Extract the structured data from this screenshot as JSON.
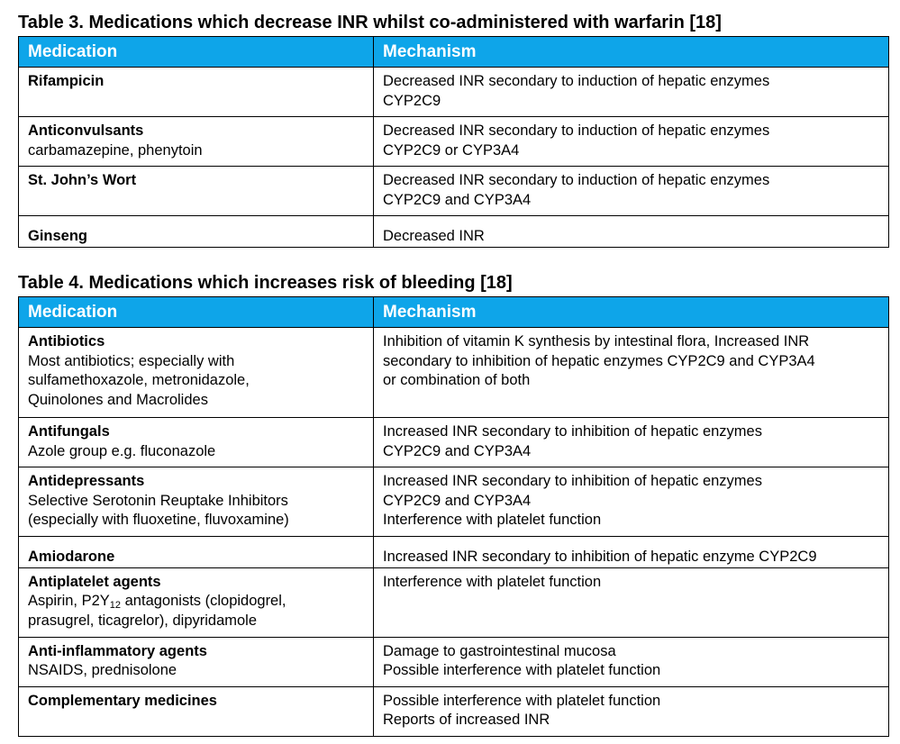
{
  "table3": {
    "caption": "Table 3. Medications which decrease INR whilst co-administered with warfarin [18]",
    "headers": [
      "Medication",
      "Mechanism"
    ],
    "rows": [
      {
        "name": "Rifampicin",
        "detail": "",
        "mechanism": "Decreased INR secondary to induction of hepatic enzymes\nCYP2C9"
      },
      {
        "name": "Anticonvulsants",
        "detail": "carbamazepine, phenytoin",
        "mechanism": "Decreased INR secondary to induction of hepatic enzymes\nCYP2C9 or CYP3A4"
      },
      {
        "name": "St. John’s Wort",
        "detail": "",
        "mechanism": "Decreased INR secondary to induction of hepatic enzymes\nCYP2C9 and CYP3A4"
      },
      {
        "name": "Ginseng",
        "detail": "",
        "mechanism": "Decreased INR"
      }
    ]
  },
  "table4": {
    "caption": "Table 4. Medications which increases risk of bleeding [18]",
    "headers": [
      "Medication",
      "Mechanism"
    ],
    "rows": [
      {
        "name": "Antibiotics",
        "detail": "Most antibiotics; especially with\nsulfamethoxazole, metronidazole,\nQuinolones and Macrolides",
        "mechanism": "Inhibition of vitamin K synthesis by intestinal flora, Increased INR\nsecondary to inhibition of hepatic enzymes CYP2C9 and CYP3A4\nor combination of both"
      },
      {
        "name": "Antifungals",
        "detail": "Azole group e.g. fluconazole",
        "mechanism": "Increased INR secondary to inhibition of hepatic enzymes\nCYP2C9 and CYP3A4"
      },
      {
        "name": "Antidepressants",
        "detail": "Selective Serotonin Reuptake Inhibitors\n(especially with fluoxetine, fluvoxamine)",
        "mechanism": "Increased INR secondary to inhibition of hepatic enzymes\nCYP2C9 and CYP3A4\nInterference with platelet function"
      },
      {
        "name": "Amiodarone",
        "detail": "",
        "mechanism": "Increased INR secondary to inhibition of hepatic enzyme CYP2C9"
      },
      {
        "name": "Antiplatelet agents",
        "detail_pre": "Aspirin, P2Y",
        "detail_sub": "12",
        "detail_post": " antagonists (clopidogrel,\nprasugrel, ticagrelor), dipyridamole",
        "mechanism": "Interference with platelet function"
      },
      {
        "name": "Anti-inflammatory agents",
        "detail": "NSAIDS, prednisolone",
        "mechanism": "Damage to gastrointestinal mucosa\nPossible interference with platelet function"
      },
      {
        "name": "Complementary medicines",
        "detail": "",
        "mechanism": "Possible interference with platelet function\nReports of increased INR"
      }
    ]
  },
  "colors": {
    "header_bg": "#0ea5e9",
    "header_text": "#ffffff",
    "border": "#000000"
  }
}
